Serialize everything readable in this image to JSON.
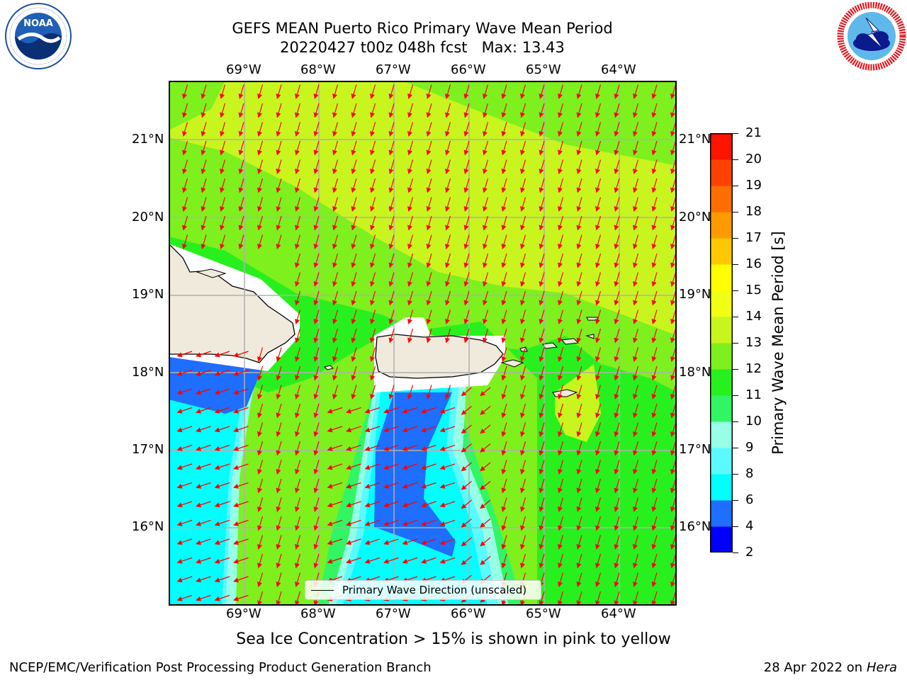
{
  "title": {
    "line1": "GEFS MEAN Puerto Rico Primary Wave Mean Period",
    "line2": "20220427 t00z 048h fcst   Max: 13.43"
  },
  "logos": {
    "noaa_text": "NOAA",
    "noaa_ring": "NATIONAL OCEANIC AND ATMOSPHERIC ADMINISTRATION · U.S. DEPARTMENT OF COMMERCE",
    "nws_ring": "NATIONAL WEATHER SERVICE"
  },
  "map": {
    "lon_labels": [
      "69°W",
      "68°W",
      "67°W",
      "66°W",
      "65°W",
      "64°W"
    ],
    "lat_labels": [
      "21°N",
      "20°N",
      "19°N",
      "18°N",
      "17°N",
      "16°N"
    ],
    "arrow_color": "#ff0000",
    "land_color": "#efeadc"
  },
  "legend": {
    "label": "Primary Wave Direction (unscaled)"
  },
  "colorbar": {
    "label": "Primary Wave Mean Period [s]",
    "ticks": [
      "21",
      "20",
      "19",
      "18",
      "17",
      "16",
      "15",
      "14",
      "13",
      "12",
      "11",
      "10",
      "9",
      "8",
      "6",
      "4",
      "2"
    ],
    "colors": [
      "#0000ff",
      "#1e6eff",
      "#00ffff",
      "#5afaff",
      "#96ffe6",
      "#32f564",
      "#28f01e",
      "#7df01e",
      "#c8f51e",
      "#f0ff14",
      "#ffff00",
      "#ffc800",
      "#ff9b00",
      "#ff6e00",
      "#ff4100",
      "#ff1400"
    ]
  },
  "caption": "Sea Ice Concentration > 15% is shown in pink to yellow",
  "footer": {
    "left": "NCEP/EMC/Verification Post Processing Product Generation Branch",
    "right_prefix": "28 Apr 2022 on",
    "right_italic": "Hera"
  }
}
